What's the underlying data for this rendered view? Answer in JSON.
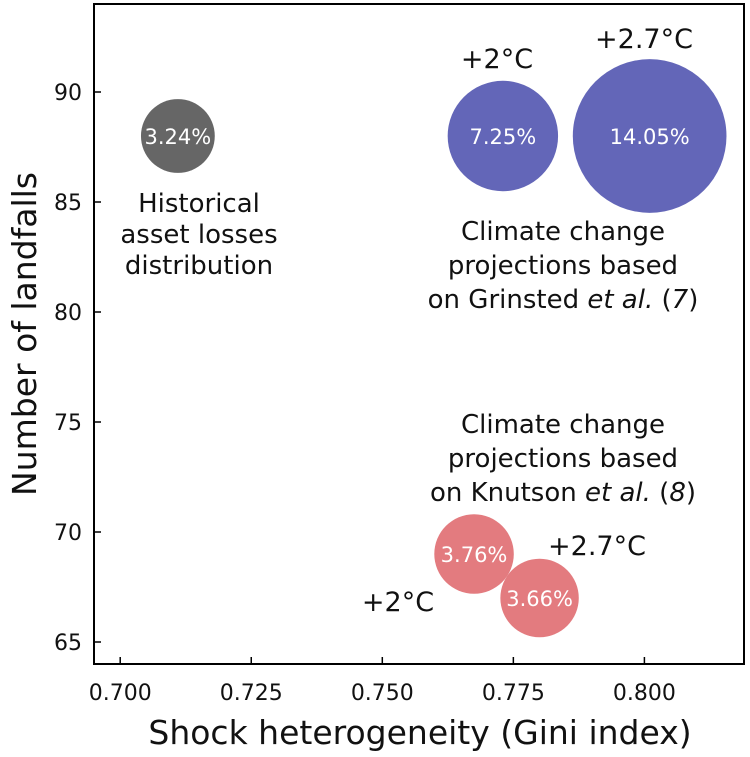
{
  "chart_data": {
    "type": "scatter",
    "xlabel": "Shock heterogeneity (Gini index)",
    "ylabel": "Number of landfalls",
    "xlim": [
      0.695,
      0.819
    ],
    "ylim": [
      64,
      94
    ],
    "xticks": [
      "0.700",
      "0.725",
      "0.750",
      "0.775",
      "0.800"
    ],
    "xtick_values": [
      0.7,
      0.725,
      0.75,
      0.775,
      0.8
    ],
    "yticks": [
      "65",
      "70",
      "75",
      "80",
      "85",
      "90"
    ],
    "ytick_values": [
      65,
      70,
      75,
      80,
      85,
      90
    ],
    "size_encoding": "asset loss percentage",
    "series": [
      {
        "name": "Historical asset losses distribution",
        "color": "#666666",
        "points": [
          {
            "x": 0.711,
            "y": 88,
            "label": "3.24%",
            "size": 3.24
          }
        ]
      },
      {
        "name": "Climate change projections based on Grinsted et al. (7)",
        "color": "#6366b8",
        "points": [
          {
            "x": 0.773,
            "y": 88,
            "label": "7.25%",
            "size": 7.25,
            "scenario": "+2°C"
          },
          {
            "x": 0.801,
            "y": 88,
            "label": "14.05%",
            "size": 14.05,
            "scenario": "+2.7°C"
          }
        ]
      },
      {
        "name": "Climate change projections based on Knutson et al. (8)",
        "color": "#e27478",
        "points": [
          {
            "x": 0.7675,
            "y": 69,
            "label": "3.76%",
            "size": 3.76,
            "scenario": "+2°C"
          },
          {
            "x": 0.78,
            "y": 67,
            "label": "3.66%",
            "size": 3.66,
            "scenario": "+2.7°C"
          }
        ]
      }
    ],
    "annotations": {
      "historical": [
        "Historical",
        "asset losses",
        "distribution"
      ],
      "grinsted": {
        "line1": "Climate change",
        "line2": "projections based",
        "line3_prefix": "on Grinsted ",
        "line3_italic": "et al.",
        "line3_open": " (",
        "line3_ref": "7",
        "line3_close": ")"
      },
      "knutson": {
        "line1": "Climate change",
        "line2": "projections based",
        "line3_prefix": "on Knutson ",
        "line3_italic": "et al.",
        "line3_open": " (",
        "line3_ref": "8",
        "line3_close": ")"
      },
      "temps": {
        "grinsted_2": "+2°C",
        "grinsted_27": "+2.7°C",
        "knutson_2": "+2°C",
        "knutson_27": "+2.7°C"
      }
    }
  }
}
